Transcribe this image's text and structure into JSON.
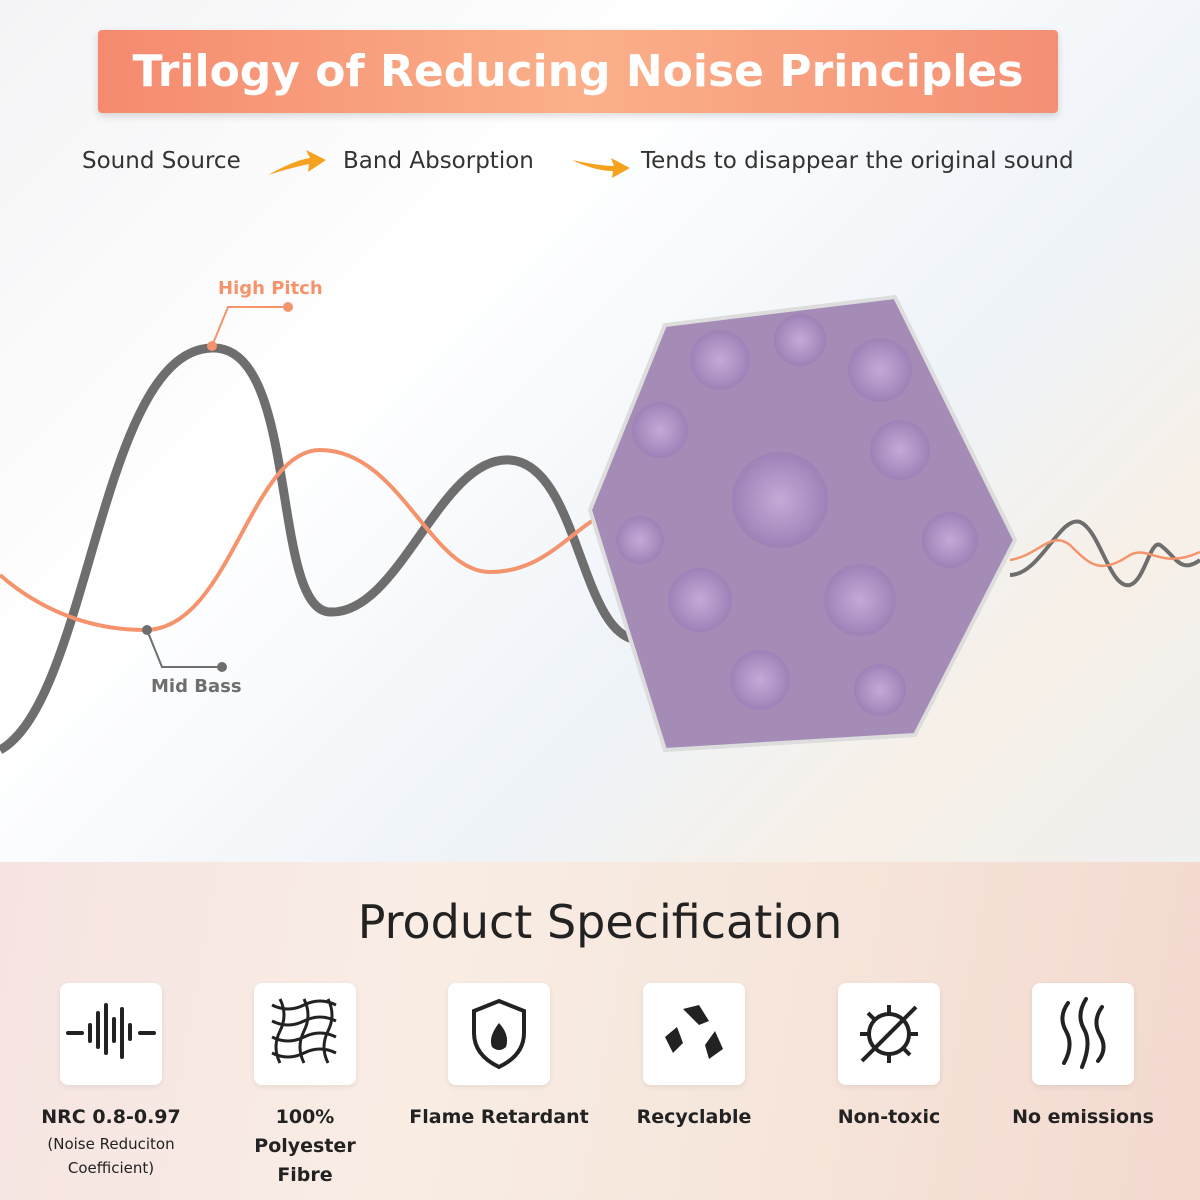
{
  "header": {
    "title": "Trilogy of Reducing Noise Principles"
  },
  "flow": [
    "Sound Source",
    "Band Absorption",
    "Tends to disappear the original sound"
  ],
  "wave_labels": {
    "high": "High Pitch",
    "low": "Mid Bass"
  },
  "specification": {
    "title": "Product Specification",
    "items": [
      {
        "label": "NRC 0.8-0.97",
        "note": "(Noise Reduciton Coefficient)"
      },
      {
        "label": "100% Polyester Fibre"
      },
      {
        "label": "Flame Retardant"
      },
      {
        "label": "Recyclable"
      },
      {
        "label": "Non-toxic"
      },
      {
        "label": "No emissions"
      }
    ]
  }
}
